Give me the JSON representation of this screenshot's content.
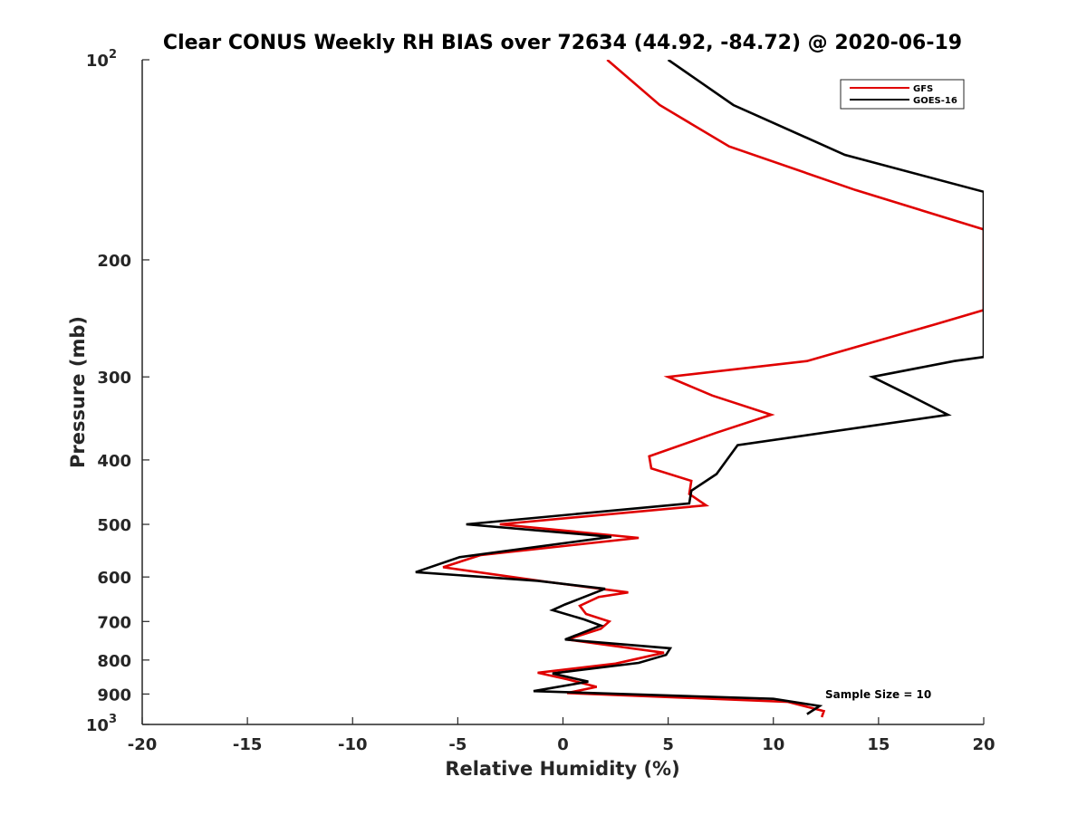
{
  "chart_data": {
    "type": "line",
    "title": "Clear CONUS Weekly RH BIAS over 72634 (44.92, -84.72) @ 2020-06-19",
    "xlabel": "Relative Humidity (%)",
    "ylabel": "Pressure (mb)",
    "xlim": [
      -20,
      20
    ],
    "ylim": [
      100,
      1000
    ],
    "yscale": "log",
    "y_reversed": true,
    "xticks": [
      -20,
      -15,
      -10,
      -5,
      0,
      5,
      10,
      15,
      20
    ],
    "xtick_labels": [
      "-20",
      "-15",
      "-10",
      "-5",
      "0",
      "5",
      "10",
      "15",
      "20"
    ],
    "yticks": [
      200,
      300,
      400,
      500,
      600,
      700,
      800,
      900
    ],
    "ytick_labels": [
      "200",
      "300",
      "400",
      "500",
      "600",
      "700",
      "800",
      "900"
    ],
    "ytick_top": {
      "base": "10",
      "exp": "2",
      "value": 100
    },
    "ytick_bottom": {
      "base": "10",
      "exp": "3",
      "value": 1000
    },
    "legend_position": "top-right",
    "annotation": "Sample Size = 10",
    "series": [
      {
        "name": "GFS",
        "color": "#e00000",
        "points": [
          [
            2.1,
            100
          ],
          [
            4.6,
            117
          ],
          [
            7.9,
            135
          ],
          [
            13.9,
            157
          ],
          [
            20,
            180
          ],
          [
            20,
            238
          ],
          [
            17.7,
            250
          ],
          [
            11.6,
            284
          ],
          [
            5.0,
            300
          ],
          [
            7.1,
            320
          ],
          [
            9.9,
            342
          ],
          [
            7.3,
            364
          ],
          [
            4.1,
            395
          ],
          [
            4.2,
            412
          ],
          [
            6.1,
            430
          ],
          [
            6.0,
            450
          ],
          [
            6.8,
            468
          ],
          [
            -3.0,
            500
          ],
          [
            3.6,
            524
          ],
          [
            -3.9,
            556
          ],
          [
            -5.7,
            580
          ],
          [
            -0.8,
            610
          ],
          [
            3.1,
            633
          ],
          [
            1.7,
            643
          ],
          [
            0.8,
            663
          ],
          [
            1.1,
            682
          ],
          [
            2.2,
            700
          ],
          [
            1.8,
            718
          ],
          [
            0.2,
            745
          ],
          [
            4.8,
            780
          ],
          [
            2.5,
            810
          ],
          [
            -1.2,
            836
          ],
          [
            0.2,
            855
          ],
          [
            1.6,
            878
          ],
          [
            0.2,
            897
          ],
          [
            10.7,
            925
          ],
          [
            12.4,
            955
          ],
          [
            12.3,
            975
          ]
        ]
      },
      {
        "name": "GOES-16",
        "color": "#000000",
        "points": [
          [
            5.0,
            100
          ],
          [
            8.1,
            117
          ],
          [
            13.4,
            139
          ],
          [
            20,
            158
          ],
          [
            20,
            280
          ],
          [
            18.6,
            284
          ],
          [
            14.7,
            300
          ],
          [
            16.5,
            320
          ],
          [
            18.3,
            342
          ],
          [
            8.3,
            380
          ],
          [
            7.3,
            420
          ],
          [
            6.1,
            445
          ],
          [
            6.0,
            465
          ],
          [
            -4.6,
            500
          ],
          [
            2.3,
            522
          ],
          [
            -4.9,
            560
          ],
          [
            -7.0,
            590
          ],
          [
            -1.2,
            608
          ],
          [
            2.0,
            625
          ],
          [
            0.1,
            660
          ],
          [
            -0.5,
            673
          ],
          [
            1.0,
            695
          ],
          [
            1.8,
            710
          ],
          [
            0.1,
            745
          ],
          [
            5.1,
            768
          ],
          [
            4.9,
            786
          ],
          [
            3.6,
            808
          ],
          [
            -0.5,
            838
          ],
          [
            1.2,
            862
          ],
          [
            -1.4,
            891
          ],
          [
            10.0,
            915
          ],
          [
            12.2,
            938
          ],
          [
            11.6,
            965
          ]
        ]
      }
    ]
  }
}
